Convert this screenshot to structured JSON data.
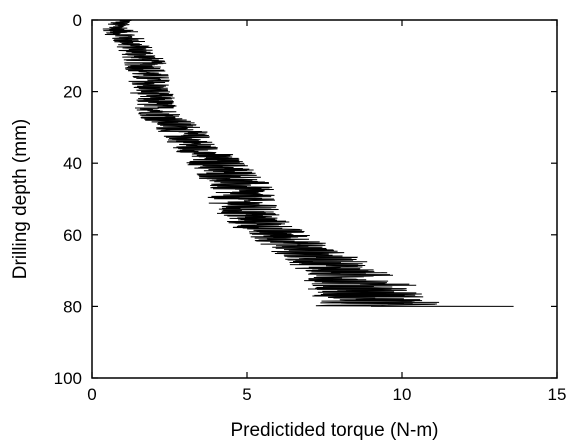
{
  "chart_data": {
    "type": "line",
    "title": "",
    "xlabel": "Predictided torque (N-m)",
    "ylabel": "Drilling depth (mm)",
    "xlim": [
      0,
      15
    ],
    "ylim": [
      0,
      100
    ],
    "y_inverted": true,
    "grid": false,
    "legend": "none",
    "x_ticks": [
      "0",
      "5",
      "10",
      "15"
    ],
    "y_ticks": [
      "0",
      "20",
      "40",
      "60",
      "80",
      "100"
    ],
    "x_tick_values": [
      0,
      5,
      10,
      15
    ],
    "y_tick_values": [
      0,
      20,
      40,
      60,
      80,
      100
    ],
    "line_color": "#000000",
    "series": [
      {
        "depth": [
          0,
          1,
          2,
          4,
          6,
          8,
          10,
          12,
          15,
          18,
          20,
          22,
          25,
          28,
          30,
          33,
          36,
          38,
          40,
          42,
          44,
          46,
          48,
          50,
          52,
          55,
          58,
          60,
          62,
          65,
          67,
          70,
          72,
          74,
          76,
          78,
          79,
          80
        ],
        "center": [
          1.2,
          0.8,
          0.8,
          1.0,
          1.2,
          1.4,
          1.6,
          1.7,
          1.8,
          1.9,
          1.9,
          2.0,
          2.1,
          2.4,
          2.8,
          3.1,
          3.4,
          3.8,
          4.0,
          4.3,
          4.5,
          4.7,
          4.8,
          4.8,
          4.9,
          5.1,
          5.6,
          6.0,
          6.4,
          7.0,
          7.5,
          8.0,
          8.4,
          8.7,
          8.9,
          9.0,
          9.2,
          9.0
        ],
        "spread": [
          0.3,
          0.4,
          0.5,
          0.6,
          0.6,
          0.6,
          0.7,
          0.7,
          0.7,
          0.7,
          0.7,
          0.7,
          0.7,
          0.8,
          0.8,
          0.8,
          0.8,
          0.9,
          1.0,
          1.1,
          1.1,
          1.1,
          1.1,
          1.1,
          1.1,
          1.1,
          1.1,
          1.1,
          1.1,
          1.2,
          1.3,
          1.4,
          1.6,
          1.8,
          1.9,
          1.9,
          2.1,
          2.2
        ],
        "spike": {
          "depth": 80,
          "torque": 13.6
        }
      }
    ]
  }
}
